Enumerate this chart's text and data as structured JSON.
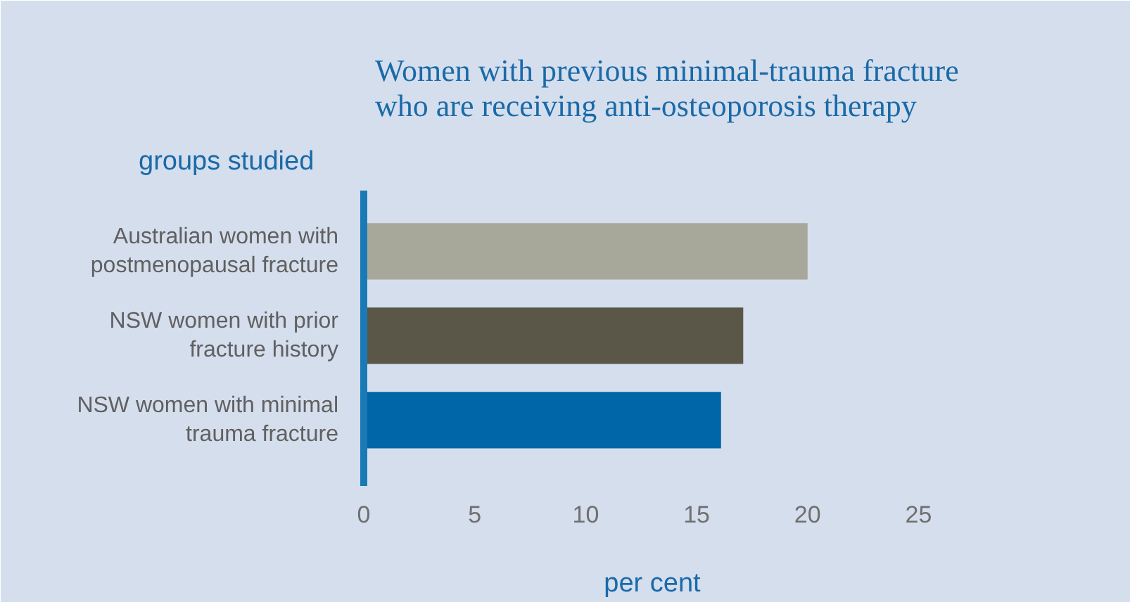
{
  "chart_data": {
    "type": "bar",
    "orientation": "horizontal",
    "title": "Women with previous minimal-trauma fracture\nwho are receiving anti-osteoporosis therapy",
    "ylabel": "groups studied",
    "xlabel": "per cent",
    "categories": [
      "Australian women with\npostmenopausal fracture",
      "NSW women with prior\nfracture history",
      "NSW women with minimal\ntrauma fracture"
    ],
    "values": [
      20,
      17.1,
      16.1
    ],
    "colors": [
      "#a8a89a",
      "#5a5749",
      "#0066a8"
    ],
    "xlim": [
      0,
      26
    ],
    "xticks": [
      0,
      5,
      10,
      15,
      20,
      25
    ],
    "grid": false
  }
}
